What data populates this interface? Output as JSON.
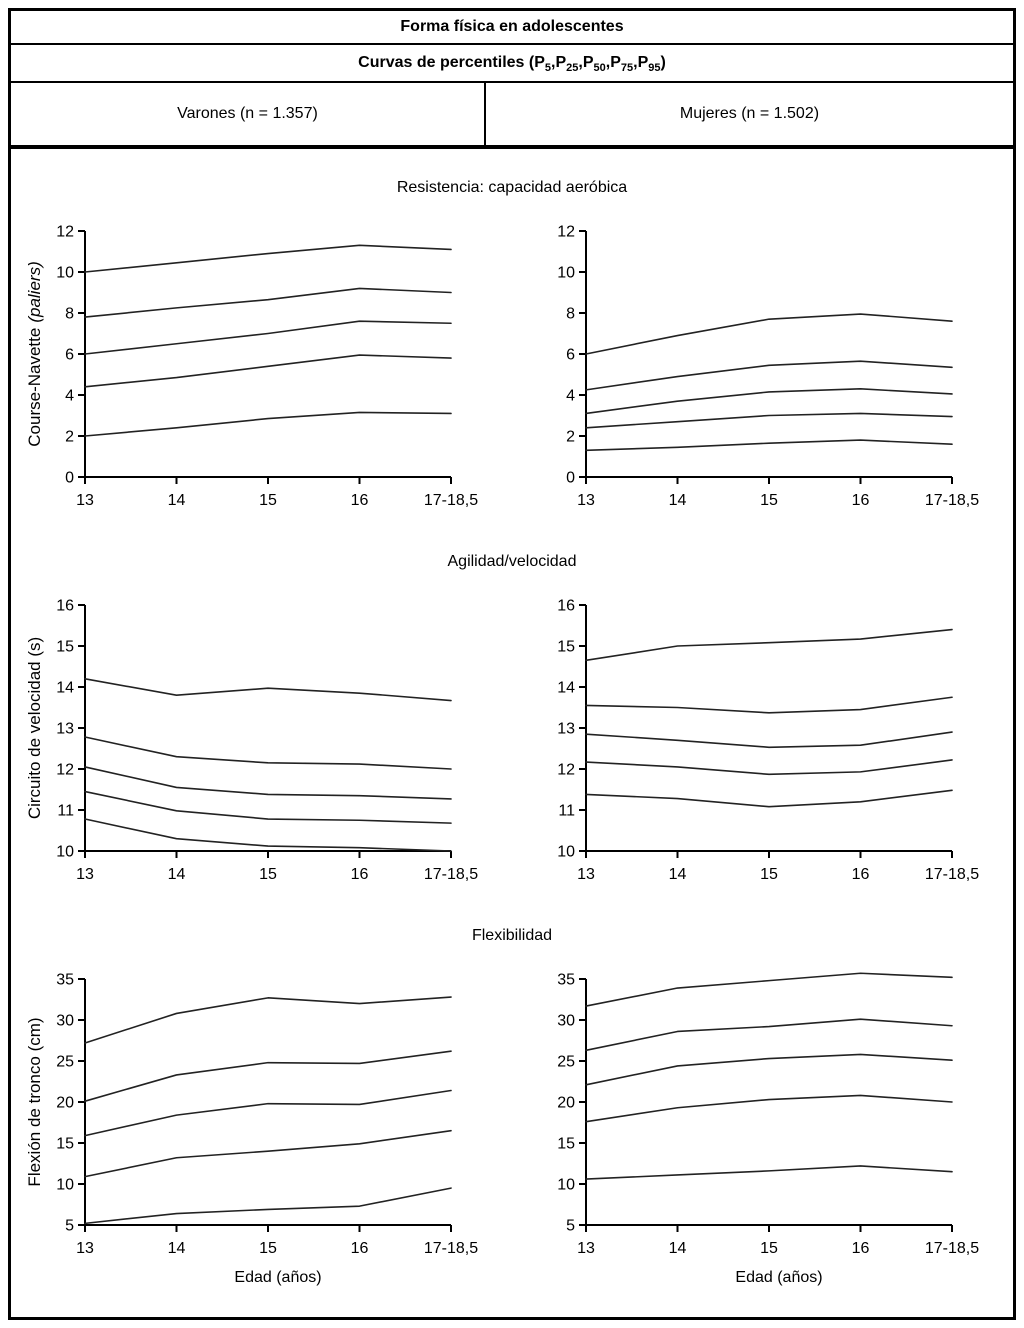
{
  "header": {
    "title": "Forma física en adolescentes",
    "subtitle_pre": "Curvas de percentiles (",
    "p_letter": "P",
    "p_subs": [
      "5",
      "25",
      "50",
      "75",
      "95"
    ],
    "p_sep": ", ",
    "subtitle_post": ")",
    "columns": {
      "left": "Varones (n = 1.357)",
      "right": "Mujeres (n = 1.502)"
    }
  },
  "sections": [
    "Resistencia: capacidad aeróbica",
    "Agilidad/velocidad",
    "Flexibilidad"
  ],
  "colors": {
    "line": "#222222",
    "axis": "#000000",
    "text": "#000000",
    "background": "#ffffff",
    "border": "#000000"
  },
  "chart_data": [
    {
      "type": "line",
      "section": "Resistencia: capacidad aeróbica",
      "panel": "Varones",
      "ylabel": "Course-Navette",
      "ylabel_italic": "(paliers)",
      "x_categories": [
        "13",
        "14",
        "15",
        "16",
        "17-18,5"
      ],
      "ylim": [
        0,
        12
      ],
      "yticks": [
        0,
        2,
        4,
        6,
        8,
        10,
        12
      ],
      "grid": false,
      "legend": false,
      "series": [
        {
          "name": "P95",
          "values": [
            10.0,
            10.45,
            10.9,
            11.3,
            11.1
          ]
        },
        {
          "name": "P75",
          "values": [
            7.8,
            8.25,
            8.65,
            9.2,
            9.0
          ]
        },
        {
          "name": "P50",
          "values": [
            6.0,
            6.5,
            7.0,
            7.6,
            7.5
          ]
        },
        {
          "name": "P25",
          "values": [
            4.4,
            4.85,
            5.4,
            5.95,
            5.8
          ]
        },
        {
          "name": "P5",
          "values": [
            2.0,
            2.4,
            2.85,
            3.15,
            3.1
          ]
        }
      ]
    },
    {
      "type": "line",
      "section": "Resistencia: capacidad aeróbica",
      "panel": "Mujeres",
      "ylabel": "",
      "x_categories": [
        "13",
        "14",
        "15",
        "16",
        "17-18,5"
      ],
      "ylim": [
        0,
        12
      ],
      "yticks": [
        0,
        2,
        4,
        6,
        8,
        10,
        12
      ],
      "grid": false,
      "legend": false,
      "series": [
        {
          "name": "P95",
          "values": [
            6.0,
            6.9,
            7.7,
            7.95,
            7.6
          ]
        },
        {
          "name": "P75",
          "values": [
            4.25,
            4.9,
            5.45,
            5.65,
            5.35
          ]
        },
        {
          "name": "P50",
          "values": [
            3.1,
            3.7,
            4.15,
            4.3,
            4.05
          ]
        },
        {
          "name": "P25",
          "values": [
            2.4,
            2.7,
            3.0,
            3.1,
            2.95
          ]
        },
        {
          "name": "P5",
          "values": [
            1.3,
            1.45,
            1.65,
            1.8,
            1.6
          ]
        }
      ]
    },
    {
      "type": "line",
      "section": "Agilidad/velocidad",
      "panel": "Varones",
      "ylabel": "Circuito de velocidad (s)",
      "x_categories": [
        "13",
        "14",
        "15",
        "16",
        "17-18,5"
      ],
      "ylim": [
        10,
        16
      ],
      "yticks": [
        10,
        11,
        12,
        13,
        14,
        15,
        16
      ],
      "grid": false,
      "legend": false,
      "series": [
        {
          "name": "P95",
          "values": [
            14.2,
            13.8,
            13.97,
            13.85,
            13.67
          ]
        },
        {
          "name": "P75",
          "values": [
            12.78,
            12.3,
            12.15,
            12.12,
            12.0
          ]
        },
        {
          "name": "P50",
          "values": [
            12.05,
            11.55,
            11.38,
            11.35,
            11.27
          ]
        },
        {
          "name": "P25",
          "values": [
            11.45,
            10.98,
            10.78,
            10.75,
            10.68
          ]
        },
        {
          "name": "P5",
          "values": [
            10.78,
            10.3,
            10.12,
            10.08,
            10.0
          ]
        }
      ]
    },
    {
      "type": "line",
      "section": "Agilidad/velocidad",
      "panel": "Mujeres",
      "ylabel": "",
      "x_categories": [
        "13",
        "14",
        "15",
        "16",
        "17-18,5"
      ],
      "ylim": [
        10,
        16
      ],
      "yticks": [
        10,
        11,
        12,
        13,
        14,
        15,
        16
      ],
      "grid": false,
      "legend": false,
      "series": [
        {
          "name": "P95",
          "values": [
            14.65,
            15.0,
            15.08,
            15.17,
            15.4
          ]
        },
        {
          "name": "P75",
          "values": [
            13.55,
            13.5,
            13.37,
            13.45,
            13.75
          ]
        },
        {
          "name": "P50",
          "values": [
            12.85,
            12.7,
            12.53,
            12.58,
            12.9
          ]
        },
        {
          "name": "P25",
          "values": [
            12.17,
            12.05,
            11.87,
            11.93,
            12.22
          ]
        },
        {
          "name": "P5",
          "values": [
            11.38,
            11.28,
            11.08,
            11.2,
            11.48
          ]
        }
      ]
    },
    {
      "type": "line",
      "section": "Flexibilidad",
      "panel": "Varones",
      "ylabel": "Flexión de tronco (cm)",
      "xlabel": "Edad (años)",
      "x_categories": [
        "13",
        "14",
        "15",
        "16",
        "17-18,5"
      ],
      "ylim": [
        5,
        35
      ],
      "yticks": [
        5,
        10,
        15,
        20,
        25,
        30,
        35
      ],
      "grid": false,
      "legend": false,
      "series": [
        {
          "name": "P95",
          "values": [
            27.2,
            30.8,
            32.7,
            32.0,
            32.8
          ]
        },
        {
          "name": "P75",
          "values": [
            20.1,
            23.3,
            24.8,
            24.7,
            26.2
          ]
        },
        {
          "name": "P50",
          "values": [
            15.9,
            18.4,
            19.8,
            19.7,
            21.4
          ]
        },
        {
          "name": "P25",
          "values": [
            10.9,
            13.2,
            14.0,
            14.9,
            16.5
          ]
        },
        {
          "name": "P5",
          "values": [
            5.2,
            6.4,
            6.9,
            7.3,
            9.5
          ]
        }
      ]
    },
    {
      "type": "line",
      "section": "Flexibilidad",
      "panel": "Mujeres",
      "ylabel": "",
      "xlabel": "Edad (años)",
      "x_categories": [
        "13",
        "14",
        "15",
        "16",
        "17-18,5"
      ],
      "ylim": [
        5,
        35
      ],
      "yticks": [
        5,
        10,
        15,
        20,
        25,
        30,
        35
      ],
      "grid": false,
      "legend": false,
      "series": [
        {
          "name": "P95",
          "values": [
            31.7,
            33.9,
            34.8,
            35.7,
            35.2
          ]
        },
        {
          "name": "P75",
          "values": [
            26.3,
            28.6,
            29.2,
            30.1,
            29.3
          ]
        },
        {
          "name": "P50",
          "values": [
            22.1,
            24.4,
            25.3,
            25.8,
            25.1
          ]
        },
        {
          "name": "P25",
          "values": [
            17.6,
            19.3,
            20.3,
            20.8,
            20.0
          ]
        },
        {
          "name": "P5",
          "values": [
            10.6,
            11.1,
            11.6,
            12.2,
            11.5
          ]
        }
      ]
    }
  ]
}
